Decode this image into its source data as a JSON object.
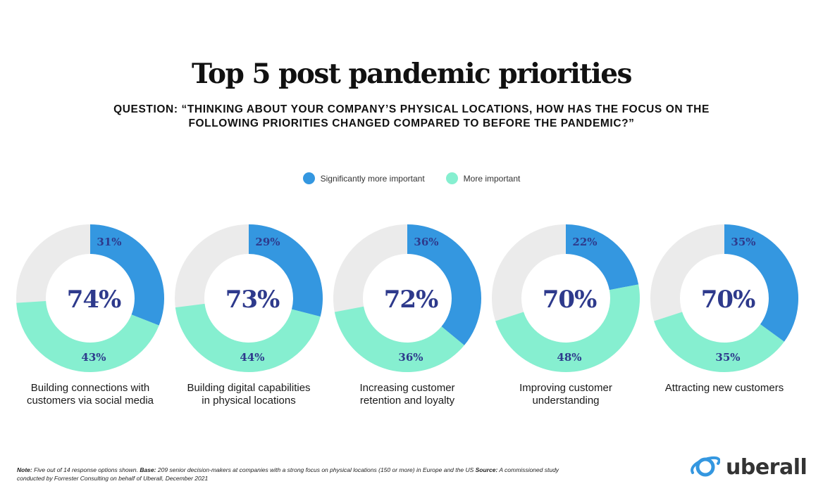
{
  "title": "Top 5 post pandemic priorities",
  "subtitle_line1": "QUESTION: “THINKING ABOUT YOUR COMPANY’S PHYSICAL LOCATIONS, HOW HAS THE FOCUS ON THE",
  "subtitle_line2": "FOLLOWING PRIORITIES CHANGED COMPARED TO BEFORE THE PANDEMIC?”",
  "colors": {
    "significant": "#3497e0",
    "more": "#86efd0",
    "rest": "#ebebeb",
    "center_text": "#2e3a8c",
    "segment_text": "#2e3a8c"
  },
  "chart_data": {
    "type": "donut",
    "title": "Top 5 post pandemic priorities",
    "legend": [
      "Significantly more important",
      "More important"
    ],
    "series": [
      {
        "name": "Significantly more important",
        "values": [
          31,
          29,
          36,
          22,
          35
        ]
      },
      {
        "name": "More important",
        "values": [
          43,
          44,
          36,
          48,
          35
        ]
      }
    ],
    "totals": [
      74,
      73,
      72,
      70,
      70
    ],
    "categories": [
      [
        "Building connections with",
        "customers via social media"
      ],
      [
        "Building digital capabilities",
        "in physical locations"
      ],
      [
        "Increasing customer",
        "retention and loyalty"
      ],
      [
        "Improving customer",
        "understanding"
      ],
      [
        "Attracting new customers"
      ]
    ],
    "labels": {
      "significant": [
        "31%",
        "29%",
        "36%",
        "22%",
        "35%"
      ],
      "more": [
        "43%",
        "44%",
        "36%",
        "48%",
        "35%"
      ],
      "totals": [
        "74%",
        "73%",
        "72%",
        "70%",
        "70%"
      ]
    }
  },
  "note": {
    "note_label": "Note:",
    "note_text": " Five out of 14 response options shown. ",
    "base_label": "Base:",
    "base_text": " 209 senior decision-makers at companies with a strong focus on physical locations (150 or more) in Europe and the US ",
    "source_label": "Source:",
    "source_text": " A commissioned study",
    "line2": "conducted by Forrester Consulting on behalf of Uberall, December 2021"
  },
  "logo": {
    "text": "uberall",
    "icon": "globe-orbit-icon"
  }
}
